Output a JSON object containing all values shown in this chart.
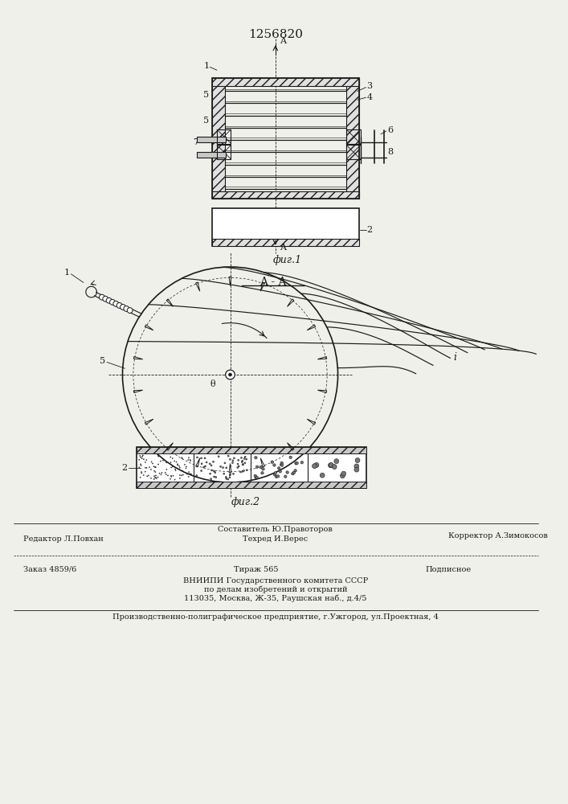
{
  "patent_number": "1256820",
  "fig1_label": "фиг.1",
  "fig2_label": "фиг.2",
  "section_label": "A - A",
  "bg_color": "#f0f0eb",
  "line_color": "#1a1a1a",
  "footer_line1_left": "Редактор Л.Повхан",
  "footer_line1_center1": "Составитель Ю.Правоторов",
  "footer_line1_center2": "Техред И.Верес",
  "footer_line1_right": "Корректор А.Зимокосов",
  "footer_line2_left": "Заказ 4859/6",
  "footer_line2_center": "Тираж 565",
  "footer_line2_right": "Подписное",
  "footer_vniishi": "ВНИИПИ Государственного комитета СССР\nпо делам изобретений и открытий\n113035, Москва, Ж-35, Раушская наб., д.4/5",
  "footer_bottom": "Производственно-полиграфическое предприятие, г.Ужгород, ул.Проектная, 4"
}
